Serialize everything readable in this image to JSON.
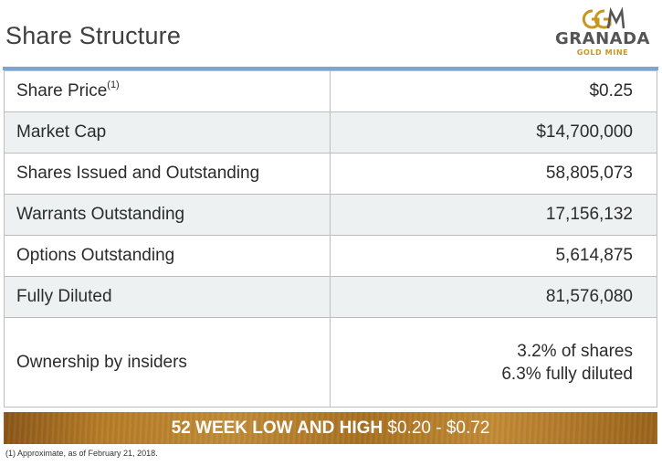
{
  "header": {
    "title": "Share Structure"
  },
  "logo": {
    "mark": "GGM",
    "name": "GRANADA",
    "subtitle": "GOLD MINE",
    "gold_color": "#c8951f",
    "gray_color": "#555555"
  },
  "table": {
    "rows": [
      {
        "label": "Share Price",
        "note": "(1)",
        "value": "$0.25"
      },
      {
        "label": "Market Cap",
        "value": "$14,700,000"
      },
      {
        "label": "Shares Issued and Outstanding",
        "value": "58,805,073"
      },
      {
        "label": "Warrants Outstanding",
        "value": "17,156,132"
      },
      {
        "label": "Options Outstanding",
        "value": "5,614,875"
      },
      {
        "label": "Fully Diluted",
        "value": "81,576,080"
      },
      {
        "label": "Ownership by insiders",
        "value_lines": [
          "3.2% of shares",
          "6.3% fully diluted"
        ]
      }
    ]
  },
  "banner": {
    "label": "52 WEEK LOW AND HIGH",
    "range": "$0.20 - $0.72"
  },
  "footnote": "(1) Approximate, as of February 21, 2018.",
  "colors": {
    "rule": "#7aa5d4",
    "row_shade": "#eef1f1",
    "banner_gold": "#b67b26"
  }
}
